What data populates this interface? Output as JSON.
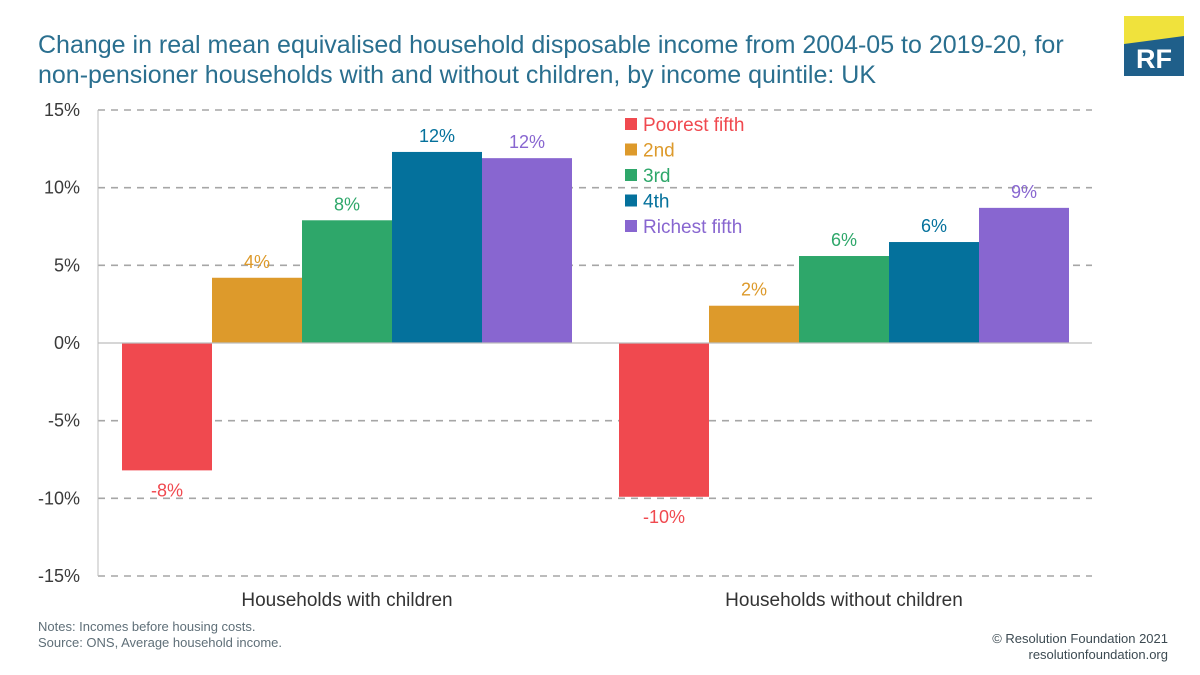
{
  "header": {
    "title_line1": "Change in real mean equivalised household disposable income from 2004-05 to 2019-20, for",
    "title_line2": "non-pensioner households with and without children, by income quintile: UK"
  },
  "logo": {
    "text": "RF",
    "colors": {
      "box": "#1f5f8a",
      "corner": "#f0e23c",
      "text": "#ffffff"
    }
  },
  "notes": {
    "line1": "Notes: Incomes before housing costs.",
    "line2": "Source: ONS, Average household income."
  },
  "credit": {
    "line1": "© Resolution Foundation 2021",
    "line2": "resolutionfoundation.org"
  },
  "chart_data": {
    "type": "bar",
    "title": "",
    "xlabel": "",
    "ylabel": "",
    "categories": [
      "Households with children",
      "Households without children"
    ],
    "ylim": [
      -15,
      15
    ],
    "yticks": [
      15,
      10,
      5,
      0,
      -5,
      -10,
      -15
    ],
    "ytick_labels": [
      "15%",
      "10%",
      "5%",
      "0%",
      "-5%",
      "-10%",
      "-15%"
    ],
    "grid": true,
    "legend_position": "top-center",
    "series": [
      {
        "name": "Poorest fifth",
        "color": "#f0494f",
        "values": [
          -8.2,
          -9.9
        ],
        "labels": [
          "-8%",
          "-10%"
        ]
      },
      {
        "name": "2nd",
        "color": "#dd9a2b",
        "values": [
          4.2,
          2.4
        ],
        "labels": [
          "4%",
          "2%"
        ]
      },
      {
        "name": "3rd",
        "color": "#2ea76a",
        "values": [
          7.9,
          5.6
        ],
        "labels": [
          "8%",
          "6%"
        ]
      },
      {
        "name": "4th",
        "color": "#04719c",
        "values": [
          12.3,
          6.5
        ],
        "labels": [
          "12%",
          "6%"
        ]
      },
      {
        "name": "Richest fifth",
        "color": "#8866d0",
        "values": [
          11.9,
          8.7
        ],
        "labels": [
          "12%",
          "9%"
        ]
      }
    ]
  }
}
